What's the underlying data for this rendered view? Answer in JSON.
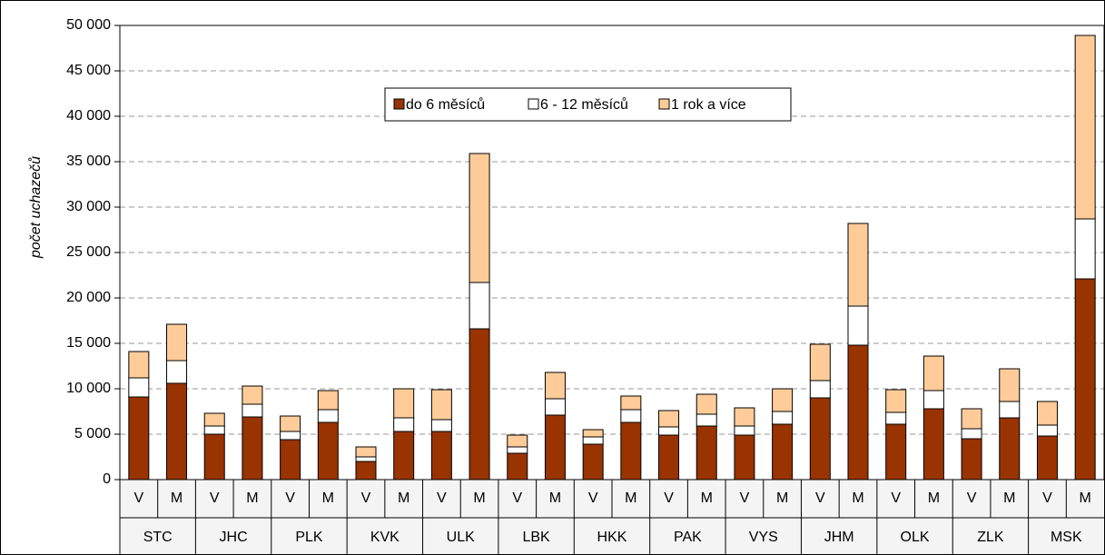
{
  "chart_data": {
    "type": "stacked_bar",
    "y_label": "počet uchazečů",
    "categories": [
      "V",
      "M",
      "V",
      "M",
      "V",
      "M",
      "V",
      "M",
      "V",
      "M",
      "V",
      "M",
      "V",
      "M",
      "V",
      "M",
      "V",
      "M",
      "V",
      "M",
      "V",
      "M",
      "V",
      "M",
      "V",
      "M"
    ],
    "groups": [
      "STC",
      "JHC",
      "PLK",
      "KVK",
      "ULK",
      "LBK",
      "HKK",
      "PAK",
      "VYS",
      "JHM",
      "OLK",
      "ZLK",
      "MSK"
    ],
    "series": [
      {
        "name": "do 6 měsíců",
        "color": "#993300",
        "values": [
          9100,
          10600,
          5000,
          6900,
          4400,
          6300,
          2000,
          5300,
          5300,
          16600,
          2900,
          7100,
          3900,
          6300,
          4900,
          5900,
          4900,
          6100,
          9000,
          14800,
          6100,
          7800,
          4500,
          6800,
          4800,
          22100
        ]
      },
      {
        "name": "6 - 12 měsíců",
        "color": "#ffffff",
        "values": [
          2100,
          2500,
          900,
          1400,
          900,
          1400,
          500,
          1500,
          1300,
          5100,
          700,
          1800,
          800,
          1400,
          900,
          1300,
          1000,
          1400,
          1900,
          4300,
          1300,
          2000,
          1100,
          1800,
          1200,
          6600
        ]
      },
      {
        "name": "1 rok a více",
        "color": "#ffcc99",
        "values": [
          2900,
          4000,
          1400,
          2000,
          1700,
          2100,
          1100,
          3200,
          3300,
          14200,
          1300,
          2900,
          800,
          1500,
          1800,
          2200,
          2000,
          2500,
          4000,
          9100,
          2500,
          3800,
          2200,
          3600,
          2600,
          20200
        ]
      }
    ],
    "ylim": [
      0,
      50000
    ],
    "yticks": [
      0,
      {
        "value": 5000,
        "label": "5 000"
      },
      {
        "value": 10000,
        "label": "10 000"
      },
      {
        "value": 15000,
        "label": "15 000"
      },
      {
        "value": 20000,
        "label": "20 000"
      },
      {
        "value": 25000,
        "label": "25 000"
      },
      {
        "value": 30000,
        "label": "30 000"
      },
      {
        "value": 35000,
        "label": "35 000"
      },
      {
        "value": 40000,
        "label": "40 000"
      },
      {
        "value": 45000,
        "label": "45 000"
      },
      {
        "value": 50000,
        "label": "50 000"
      }
    ],
    "grid": true,
    "legend": "top"
  }
}
